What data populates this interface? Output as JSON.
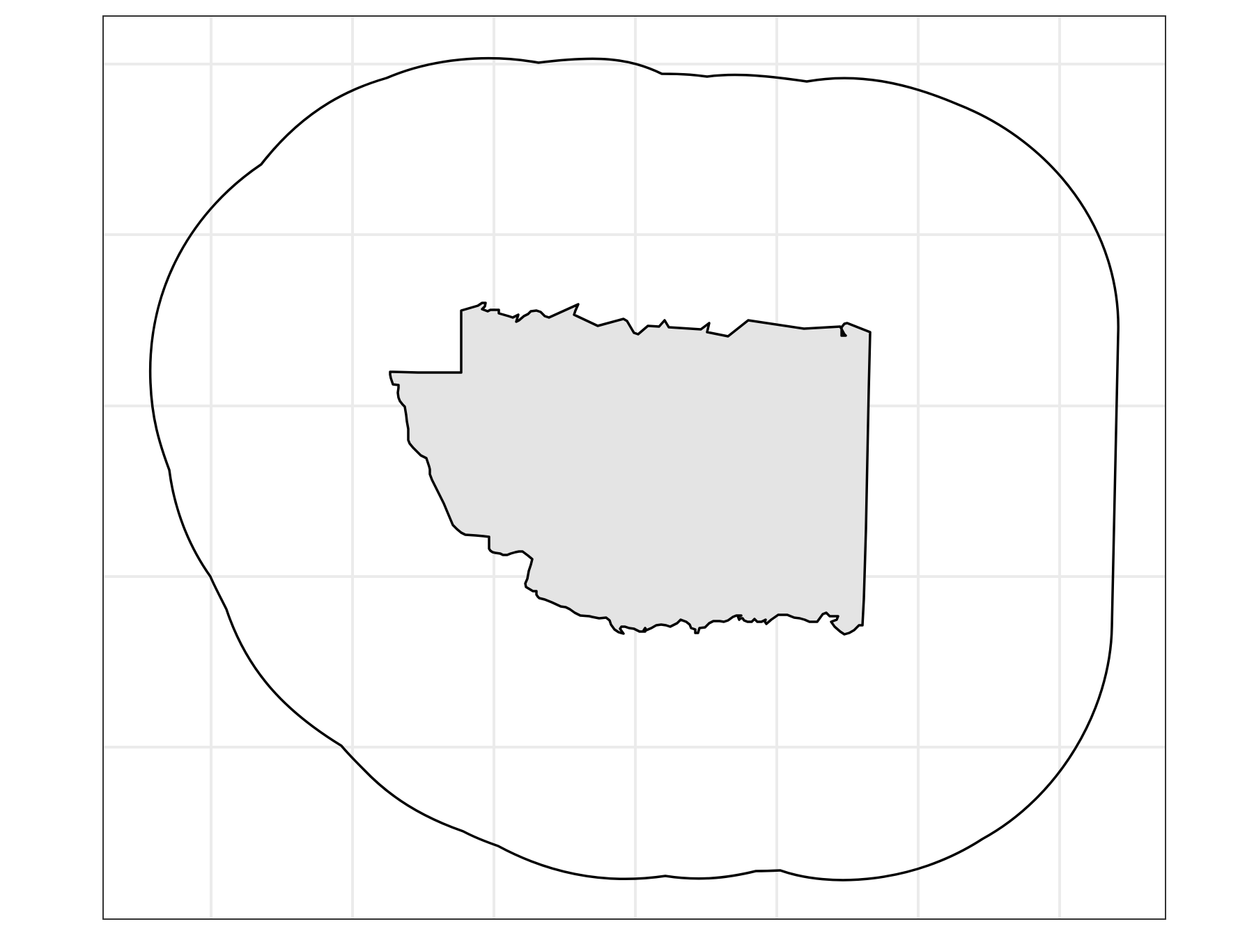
{
  "map": {
    "type": "boundary-with-buffer",
    "region_fill": "#e4e4e4",
    "outline_color": "#000000",
    "panel_border_color": "#333333",
    "grid_color": "#ebebeb",
    "background": "#ffffff",
    "grid": true,
    "layers": [
      "buffer-outline",
      "region-polygon"
    ]
  }
}
